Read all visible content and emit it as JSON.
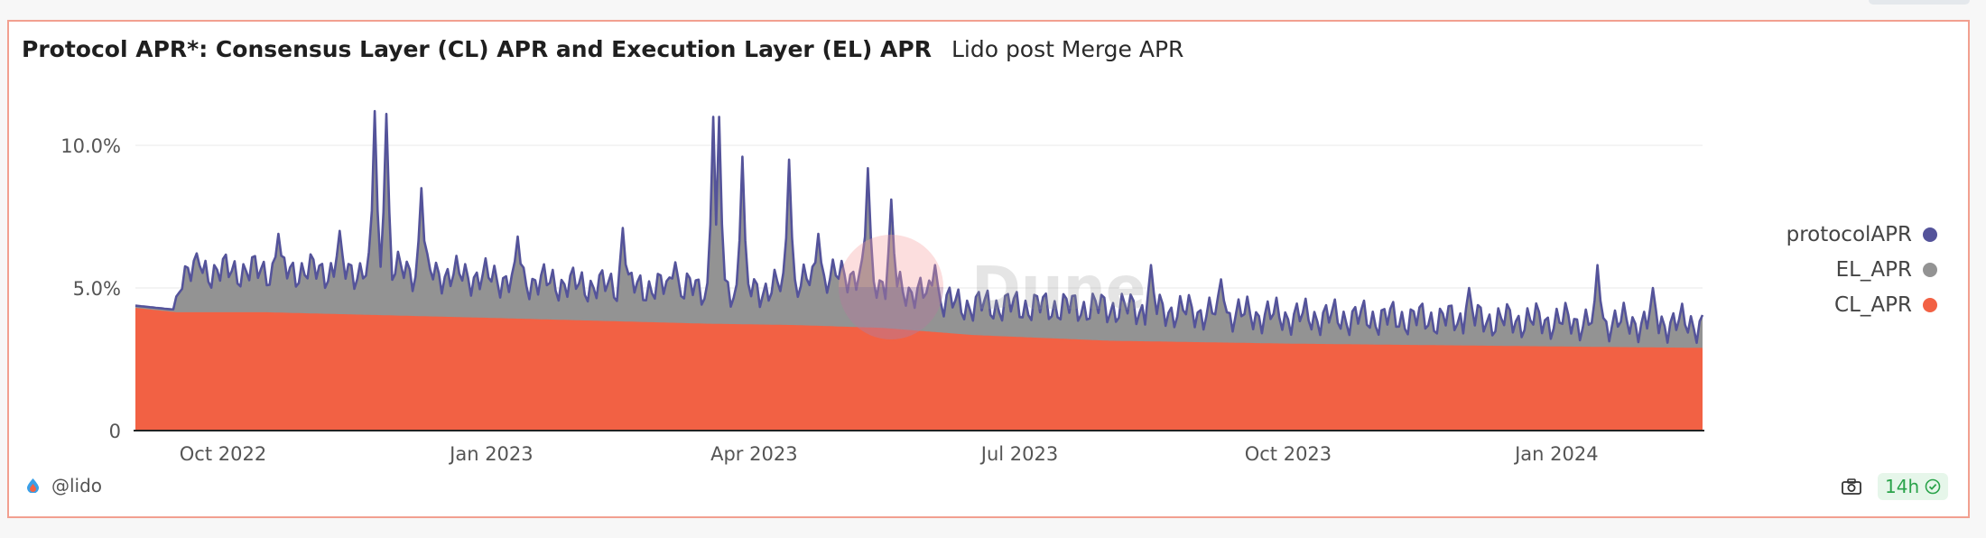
{
  "header": {
    "title": "Protocol APR*: Consensus Layer (CL) APR and Execution Layer (EL) APR",
    "subtitle": "Lido post Merge APR"
  },
  "footer": {
    "author": "@lido",
    "refresh_label": "14h",
    "icons": [
      "drop-icon",
      "camera-icon",
      "check-circle-icon"
    ]
  },
  "watermark": "Dune",
  "chart_data": {
    "type": "area",
    "stacked": true,
    "x_start": "2022-09-01",
    "x_end": "2024-02-20",
    "x_ticks": [
      {
        "date": "2022-10-01",
        "label": "Oct 2022"
      },
      {
        "date": "2023-01-01",
        "label": "Jan 2023"
      },
      {
        "date": "2023-04-01",
        "label": "Apr 2023"
      },
      {
        "date": "2023-07-01",
        "label": "Jul 2023"
      },
      {
        "date": "2023-10-01",
        "label": "Oct 2023"
      },
      {
        "date": "2024-01-01",
        "label": "Jan 2024"
      }
    ],
    "y_ticks": [
      {
        "value": 0,
        "label": "0"
      },
      {
        "value": 5,
        "label": "5.0%"
      },
      {
        "value": 10,
        "label": "10.0%"
      }
    ],
    "ylim": [
      0,
      10
    ],
    "grid": "horizontal",
    "legend_position": "right",
    "series": [
      {
        "name": "protocolAPR",
        "color": "#54539a",
        "role": "total-line"
      },
      {
        "name": "EL_APR",
        "color": "#939393",
        "role": "stack-top"
      },
      {
        "name": "CL_APR",
        "color": "#f26144",
        "role": "stack-bottom"
      }
    ],
    "cl_apr_anchors": [
      {
        "date": "2022-09-01",
        "value": 4.3
      },
      {
        "date": "2022-09-15",
        "value": 4.15
      },
      {
        "date": "2022-10-15",
        "value": 4.15
      },
      {
        "date": "2023-01-01",
        "value": 3.95
      },
      {
        "date": "2023-03-15",
        "value": 3.75
      },
      {
        "date": "2023-04-15",
        "value": 3.7
      },
      {
        "date": "2023-05-15",
        "value": 3.6
      },
      {
        "date": "2023-06-15",
        "value": 3.35
      },
      {
        "date": "2023-08-01",
        "value": 3.15
      },
      {
        "date": "2023-10-01",
        "value": 3.05
      },
      {
        "date": "2024-01-01",
        "value": 2.95
      },
      {
        "date": "2024-02-20",
        "value": 2.9
      }
    ],
    "protocol_apr_baseline": [
      {
        "date": "2022-09-01",
        "value": 4.3
      },
      {
        "date": "2022-09-14",
        "value": 4.25
      },
      {
        "date": "2022-09-17",
        "value": 5.6
      },
      {
        "date": "2022-12-01",
        "value": 5.6
      },
      {
        "date": "2023-02-01",
        "value": 5.1
      },
      {
        "date": "2023-04-01",
        "value": 4.9
      },
      {
        "date": "2023-05-05",
        "value": 5.5
      },
      {
        "date": "2023-06-10",
        "value": 4.4
      },
      {
        "date": "2023-08-01",
        "value": 4.3
      },
      {
        "date": "2023-10-01",
        "value": 4.0
      },
      {
        "date": "2024-02-20",
        "value": 3.75
      }
    ],
    "protocol_apr_peaks": [
      {
        "date": "2022-09-22",
        "value": 6.1
      },
      {
        "date": "2022-10-20",
        "value": 6.9
      },
      {
        "date": "2022-11-10",
        "value": 7.0
      },
      {
        "date": "2022-11-22",
        "value": 11.2
      },
      {
        "date": "2022-11-26",
        "value": 11.1
      },
      {
        "date": "2022-12-08",
        "value": 8.5
      },
      {
        "date": "2023-01-10",
        "value": 6.8
      },
      {
        "date": "2023-02-15",
        "value": 7.1
      },
      {
        "date": "2023-03-05",
        "value": 5.9
      },
      {
        "date": "2023-03-18",
        "value": 11.0
      },
      {
        "date": "2023-03-20",
        "value": 11.0
      },
      {
        "date": "2023-03-28",
        "value": 9.6
      },
      {
        "date": "2023-04-13",
        "value": 9.5
      },
      {
        "date": "2023-04-23",
        "value": 6.9
      },
      {
        "date": "2023-05-10",
        "value": 9.2
      },
      {
        "date": "2023-05-18",
        "value": 8.1
      },
      {
        "date": "2023-06-02",
        "value": 5.8
      },
      {
        "date": "2023-08-15",
        "value": 5.8
      },
      {
        "date": "2023-09-08",
        "value": 5.3
      },
      {
        "date": "2023-12-02",
        "value": 5.0
      },
      {
        "date": "2024-01-15",
        "value": 5.8
      },
      {
        "date": "2024-02-03",
        "value": 5.0
      }
    ]
  }
}
